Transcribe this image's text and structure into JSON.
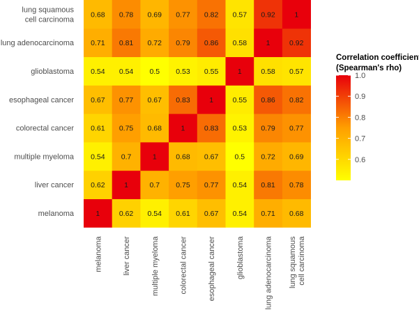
{
  "chart_data": {
    "type": "heatmap",
    "title": "",
    "xlabel": "",
    "ylabel": "",
    "categories": [
      "melanoma",
      "liver cancer",
      "multiple myeloma",
      "colorectal cancer",
      "esophageal cancer",
      "glioblastoma",
      "lung adenocarcinoma",
      "lung squamous cell carcinoma"
    ],
    "y_labels_lines": [
      [
        "melanoma"
      ],
      [
        "liver cancer"
      ],
      [
        "multiple myeloma"
      ],
      [
        "colorectal cancer"
      ],
      [
        "esophageal cancer"
      ],
      [
        "glioblastoma"
      ],
      [
        "lung adenocarcinoma"
      ],
      [
        "lung squamous",
        "cell carcinoma"
      ]
    ],
    "x_labels_lines": [
      [
        "melanoma"
      ],
      [
        "liver cancer"
      ],
      [
        "multiple myeloma"
      ],
      [
        "colorectal cancer"
      ],
      [
        "esophageal cancer"
      ],
      [
        "glioblastoma"
      ],
      [
        "lung adenocarcinoma"
      ],
      [
        "lung squamous",
        "cell carcinoma"
      ]
    ],
    "matrix": [
      [
        1,
        0.62,
        0.54,
        0.61,
        0.67,
        0.54,
        0.71,
        0.68
      ],
      [
        0.62,
        1,
        0.7,
        0.75,
        0.77,
        0.54,
        0.81,
        0.78
      ],
      [
        0.54,
        0.7,
        1,
        0.68,
        0.67,
        0.5,
        0.72,
        0.69
      ],
      [
        0.61,
        0.75,
        0.68,
        1,
        0.83,
        0.53,
        0.79,
        0.77
      ],
      [
        0.67,
        0.77,
        0.67,
        0.83,
        1,
        0.55,
        0.86,
        0.82
      ],
      [
        0.54,
        0.54,
        0.5,
        0.53,
        0.55,
        1,
        0.58,
        0.57
      ],
      [
        0.71,
        0.81,
        0.72,
        0.79,
        0.86,
        0.58,
        1,
        0.92
      ],
      [
        0.68,
        0.78,
        0.69,
        0.77,
        0.82,
        0.57,
        0.92,
        1
      ]
    ],
    "value_labels": [
      [
        "1",
        "0.62",
        "0.54",
        "0.61",
        "0.67",
        "0.54",
        "0.71",
        "0.68"
      ],
      [
        "0.62",
        "1",
        "0.7",
        "0.75",
        "0.77",
        "0.54",
        "0.81",
        "0.78"
      ],
      [
        "0.54",
        "0.7",
        "1",
        "0.68",
        "0.67",
        "0.5",
        "0.72",
        "0.69"
      ],
      [
        "0.61",
        "0.75",
        "0.68",
        "1",
        "0.83",
        "0.53",
        "0.79",
        "0.77"
      ],
      [
        "0.67",
        "0.77",
        "0.67",
        "0.83",
        "1",
        "0.55",
        "0.86",
        "0.82"
      ],
      [
        "0.54",
        "0.54",
        "0.5",
        "0.53",
        "0.55",
        "1",
        "0.58",
        "0.57"
      ],
      [
        "0.71",
        "0.81",
        "0.72",
        "0.79",
        "0.86",
        "0.58",
        "1",
        "0.92"
      ],
      [
        "0.68",
        "0.78",
        "0.69",
        "0.77",
        "0.82",
        "0.57",
        "0.92",
        "1"
      ]
    ],
    "color_scale": {
      "min": 0.5,
      "max": 1.0,
      "low_color": "#ffff00",
      "mid_color": "#ff9f00",
      "high_color": "#e8000b"
    },
    "legend": {
      "title_lines": [
        "Correlation coefficient",
        "(Spearman's rho)"
      ],
      "ticks": [
        0.6,
        0.7,
        0.8,
        0.9,
        1.0
      ],
      "tick_labels": [
        "0.6",
        "0.7",
        "0.8",
        "0.9",
        "1.0"
      ],
      "placement": "right"
    }
  }
}
